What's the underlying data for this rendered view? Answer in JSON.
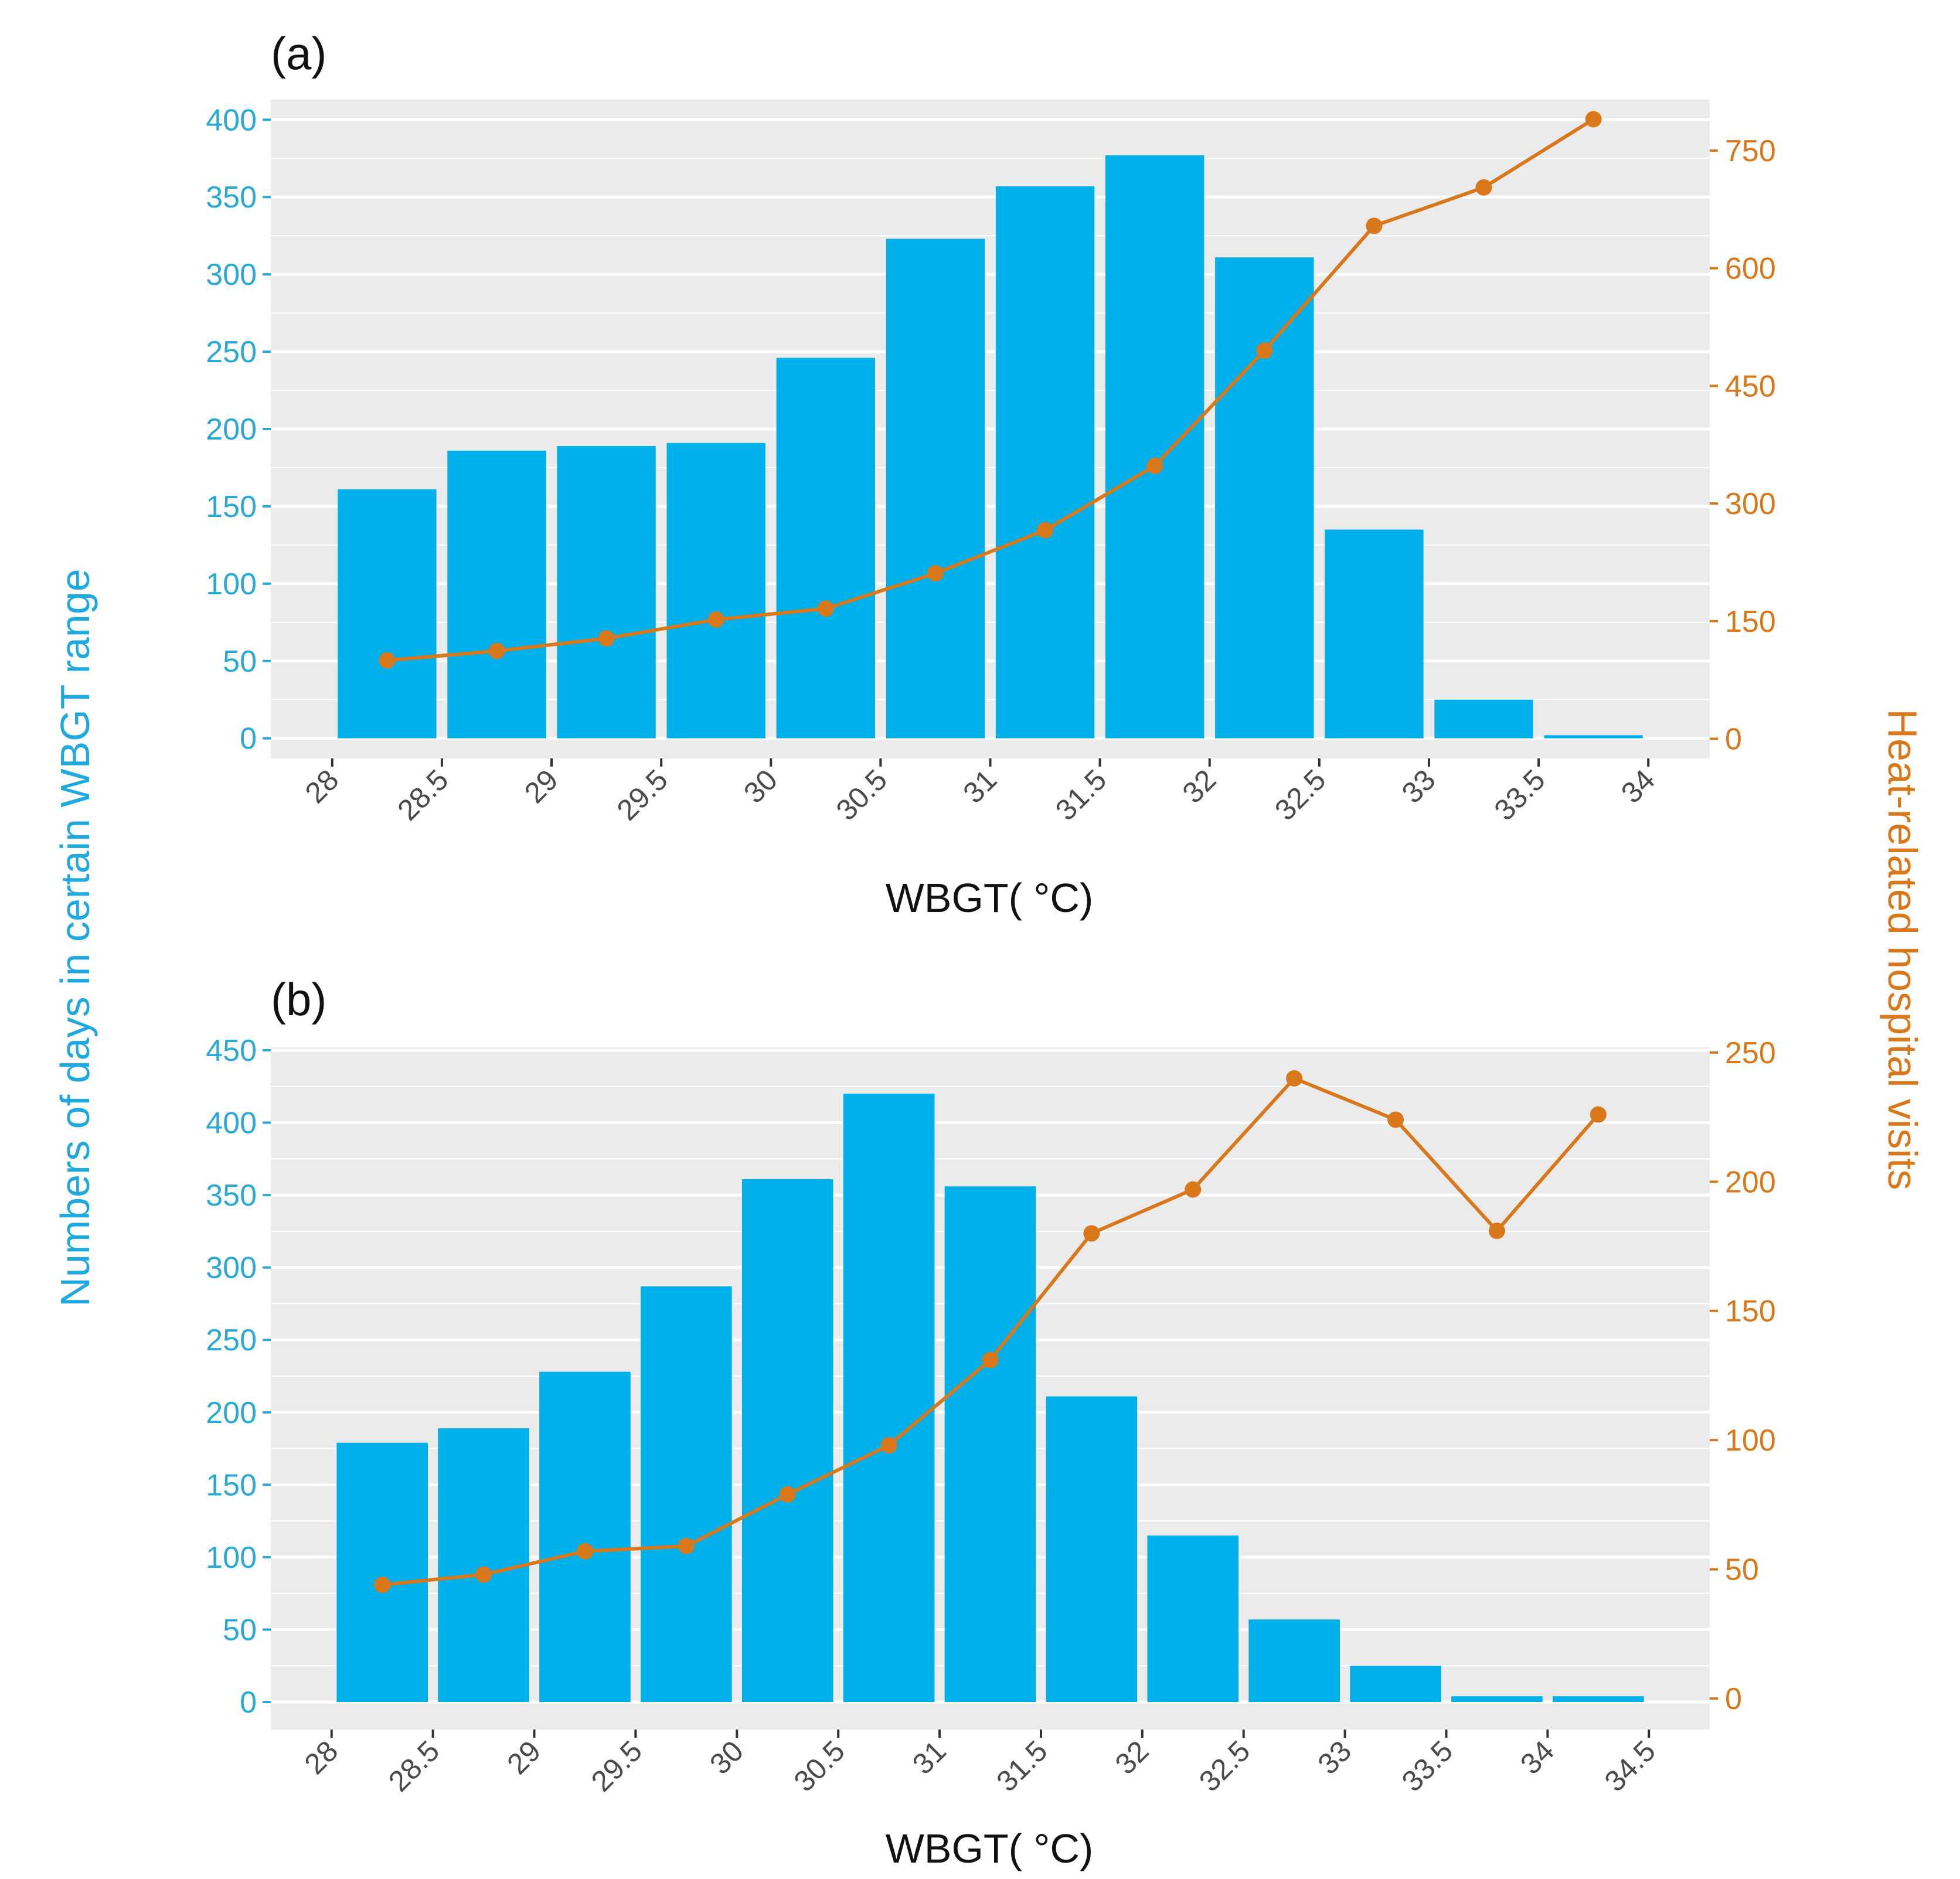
{
  "colors": {
    "bar": "#00b0ea",
    "line": "#d9781a",
    "panel_bg": "#ebebeb",
    "grid": "#ffffff",
    "left_axis": "#29a9d6",
    "right_axis": "#d9781a"
  },
  "axis_titles": {
    "left": "Numbers of days in certain WBGT range",
    "right": "Heat-related hospital visits"
  },
  "chart_data": [
    {
      "type": "bar",
      "panel_label": "(a)",
      "xlabel": "WBGT( °C)",
      "x_ticks": [
        "28",
        "28.5",
        "29",
        "29.5",
        "30",
        "30.5",
        "31",
        "31.5",
        "32",
        "32.5",
        "33",
        "33.5",
        "34"
      ],
      "bin_edges": [
        28,
        28.5,
        29,
        29.5,
        30,
        30.5,
        31,
        31.5,
        32,
        32.5,
        33,
        33.5,
        34
      ],
      "bars": {
        "name": "Numbers of days in certain WBGT range",
        "axis": "left",
        "values": [
          161,
          186,
          189,
          191,
          246,
          323,
          357,
          377,
          311,
          135,
          25,
          2
        ]
      },
      "line": {
        "name": "Heat-related hospital visits",
        "axis": "right",
        "x": [
          28.25,
          28.75,
          29.25,
          29.75,
          30.25,
          30.75,
          31.25,
          31.75,
          32.25,
          32.75,
          33.25,
          33.75
        ],
        "values": [
          100,
          112,
          128,
          152,
          166,
          211,
          266,
          348,
          495,
          654,
          703,
          790
        ]
      },
      "y_left": {
        "ticks": [
          "0",
          "50",
          "100",
          "150",
          "200",
          "250",
          "300",
          "350",
          "400"
        ],
        "ylim": [
          -13,
          413
        ]
      },
      "y_right": {
        "ticks": [
          "0",
          "150",
          "300",
          "450",
          "600",
          "750"
        ],
        "ylim": [
          -25,
          815
        ]
      }
    },
    {
      "type": "bar",
      "panel_label": "(b)",
      "xlabel": "WBGT( °C)",
      "x_ticks": [
        "28",
        "28.5",
        "29",
        "29.5",
        "30",
        "30.5",
        "31",
        "31.5",
        "32",
        "32.5",
        "33",
        "33.5",
        "34",
        "34.5"
      ],
      "bin_edges": [
        28,
        28.5,
        29,
        29.5,
        30,
        30.5,
        31,
        31.5,
        32,
        32.5,
        33,
        33.5,
        34,
        34.5
      ],
      "bars": {
        "name": "Numbers of days in certain WBGT range",
        "axis": "left",
        "values": [
          179,
          189,
          228,
          287,
          361,
          420,
          356,
          211,
          115,
          57,
          25,
          4,
          4
        ]
      },
      "line": {
        "name": "Heat-related hospital visits",
        "axis": "right",
        "x": [
          28.25,
          28.75,
          29.25,
          29.75,
          30.25,
          30.75,
          31.25,
          31.75,
          32.25,
          32.75,
          33.25,
          33.75,
          34.25
        ],
        "values": [
          44,
          48,
          57,
          59,
          79,
          98,
          131,
          180,
          197,
          240,
          224,
          181,
          226
        ]
      },
      "y_left": {
        "ticks": [
          "0",
          "50",
          "100",
          "150",
          "200",
          "250",
          "300",
          "350",
          "400",
          "450"
        ],
        "ylim": [
          -19,
          452
        ]
      },
      "y_right": {
        "ticks": [
          "0",
          "50",
          "100",
          "150",
          "200",
          "250"
        ],
        "ylim": [
          -12,
          252
        ]
      }
    }
  ]
}
